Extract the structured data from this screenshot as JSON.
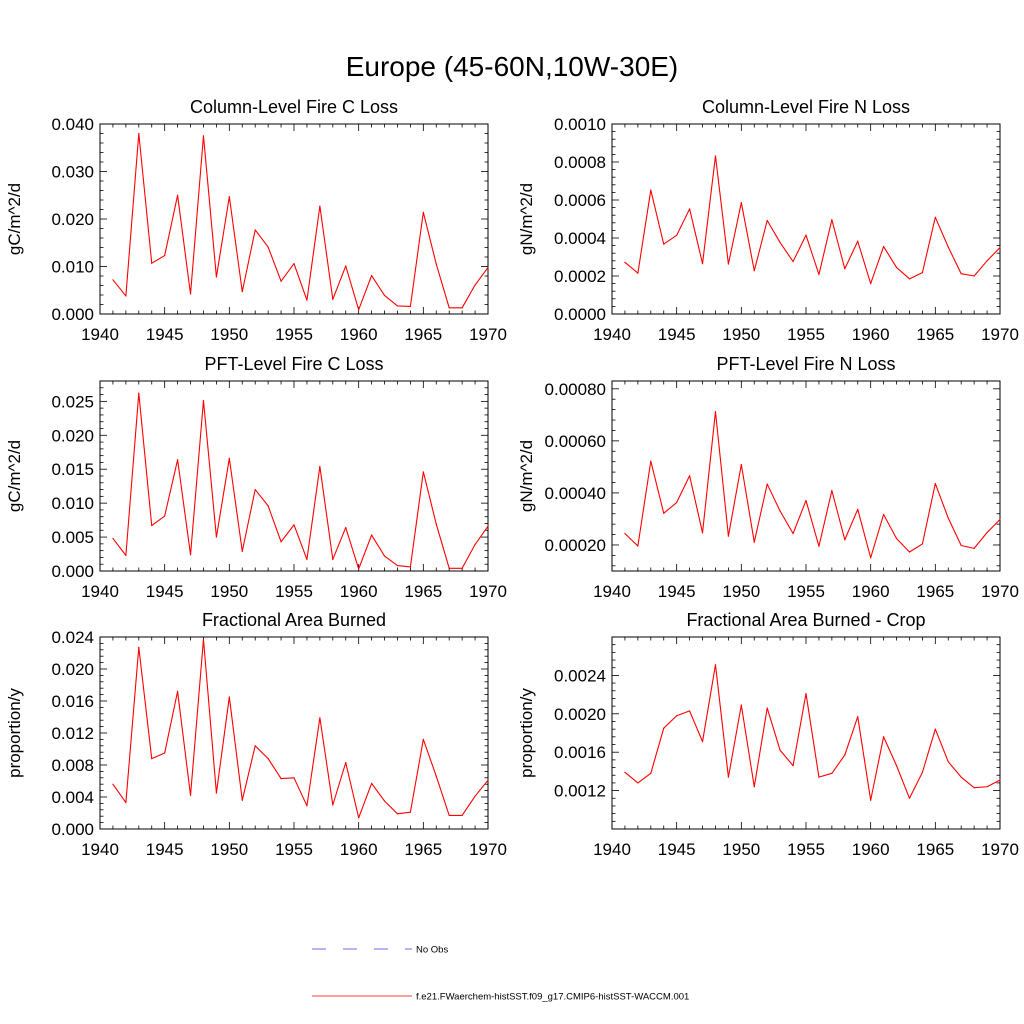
{
  "figure_title": "Europe (45-60N,10W-30E)",
  "line_color": "#ff0000",
  "obs_color": "#3b3bd6",
  "legend": {
    "obs_label": "No Obs",
    "model_label": "f.e21.FWaerchem-histSST.f09_g17.CMIP6-histSST-WACCM.001"
  },
  "chart_data": [
    {
      "type": "line",
      "title": "Column-Level Fire C Loss",
      "ylabel": "gC/m^2/d",
      "xlim": [
        1940,
        1970
      ],
      "ylim": [
        0,
        0.04
      ],
      "yticks": [
        0,
        0.01,
        0.02,
        0.03,
        0.04
      ],
      "ytick_labels": [
        "0.000",
        "0.010",
        "0.020",
        "0.030",
        "0.040"
      ],
      "xticks": [
        1940,
        1945,
        1950,
        1955,
        1960,
        1965,
        1970
      ],
      "x": [
        1941,
        1942,
        1943,
        1944,
        1945,
        1946,
        1947,
        1948,
        1949,
        1950,
        1951,
        1952,
        1953,
        1954,
        1955,
        1956,
        1957,
        1958,
        1959,
        1960,
        1961,
        1962,
        1963,
        1964,
        1965,
        1966,
        1967,
        1968,
        1969,
        1970
      ],
      "y": [
        0.0072,
        0.0038,
        0.038,
        0.0107,
        0.0123,
        0.025,
        0.0042,
        0.0375,
        0.0078,
        0.0247,
        0.0047,
        0.0177,
        0.0141,
        0.0069,
        0.0106,
        0.0029,
        0.0227,
        0.0031,
        0.0101,
        0.0009,
        0.0081,
        0.0039,
        0.0017,
        0.0016,
        0.0214,
        0.0105,
        0.0013,
        0.0013,
        0.0061,
        0.0098
      ]
    },
    {
      "type": "line",
      "title": "Column-Level Fire N Loss",
      "ylabel": "gN/m^2/d",
      "xlim": [
        1940,
        1970
      ],
      "ylim": [
        0,
        0.001
      ],
      "yticks": [
        0,
        0.0002,
        0.0004,
        0.0006,
        0.0008,
        0.001
      ],
      "ytick_labels": [
        "0.0000",
        "0.0002",
        "0.0004",
        "0.0006",
        "0.0008",
        "0.0010"
      ],
      "xticks": [
        1940,
        1945,
        1950,
        1955,
        1960,
        1965,
        1970
      ],
      "x": [
        1941,
        1942,
        1943,
        1944,
        1945,
        1946,
        1947,
        1948,
        1949,
        1950,
        1951,
        1952,
        1953,
        1954,
        1955,
        1956,
        1957,
        1958,
        1959,
        1960,
        1961,
        1962,
        1963,
        1964,
        1965,
        1966,
        1967,
        1968,
        1969,
        1970
      ],
      "y": [
        0.000272,
        0.000215,
        0.000652,
        0.000368,
        0.000414,
        0.000553,
        0.000265,
        0.000832,
        0.000263,
        0.000586,
        0.000228,
        0.000492,
        0.000376,
        0.000276,
        0.000415,
        0.000208,
        0.000496,
        0.000238,
        0.000383,
        0.00016,
        0.000355,
        0.000245,
        0.000185,
        0.000218,
        0.000509,
        0.000352,
        0.000212,
        0.0002,
        0.00028,
        0.00035
      ]
    },
    {
      "type": "line",
      "title": "PFT-Level Fire C Loss",
      "ylabel": "gC/m^2/d",
      "xlim": [
        1940,
        1970
      ],
      "ylim": [
        0,
        0.028
      ],
      "yticks": [
        0,
        0.005,
        0.01,
        0.015,
        0.02,
        0.025
      ],
      "ytick_labels": [
        "0.000",
        "0.005",
        "0.010",
        "0.015",
        "0.020",
        "0.025"
      ],
      "xticks": [
        1940,
        1945,
        1950,
        1955,
        1960,
        1965,
        1970
      ],
      "x": [
        1941,
        1942,
        1943,
        1944,
        1945,
        1946,
        1947,
        1948,
        1949,
        1950,
        1951,
        1952,
        1953,
        1954,
        1955,
        1956,
        1957,
        1958,
        1959,
        1960,
        1961,
        1962,
        1963,
        1964,
        1965,
        1966,
        1967,
        1968,
        1969,
        1970
      ],
      "y": [
        0.0048,
        0.0023,
        0.0262,
        0.0067,
        0.0081,
        0.0164,
        0.0024,
        0.0251,
        0.005,
        0.0166,
        0.0029,
        0.012,
        0.0096,
        0.0043,
        0.0068,
        0.0017,
        0.0154,
        0.0017,
        0.0064,
        0.0003,
        0.0053,
        0.0022,
        0.0008,
        0.0006,
        0.0146,
        0.0069,
        0.0004,
        0.0004,
        0.0039,
        0.0066
      ]
    },
    {
      "type": "line",
      "title": "PFT-Level Fire N Loss",
      "ylabel": "gN/m^2/d",
      "xlim": [
        1940,
        1970
      ],
      "ylim": [
        0.0001,
        0.00083
      ],
      "yticks": [
        0.0002,
        0.0004,
        0.0006,
        0.0008
      ],
      "ytick_labels": [
        "0.00020",
        "0.00040",
        "0.00060",
        "0.00080"
      ],
      "xticks": [
        1940,
        1945,
        1950,
        1955,
        1960,
        1965,
        1970
      ],
      "x": [
        1941,
        1942,
        1943,
        1944,
        1945,
        1946,
        1947,
        1948,
        1949,
        1950,
        1951,
        1952,
        1953,
        1954,
        1955,
        1956,
        1957,
        1958,
        1959,
        1960,
        1961,
        1962,
        1963,
        1964,
        1965,
        1966,
        1967,
        1968,
        1969,
        1970
      ],
      "y": [
        0.000244,
        0.000196,
        0.000522,
        0.000322,
        0.000363,
        0.000466,
        0.000247,
        0.000712,
        0.000234,
        0.000509,
        0.000211,
        0.000434,
        0.00033,
        0.000244,
        0.000371,
        0.000195,
        0.000409,
        0.00022,
        0.000337,
        0.000151,
        0.000317,
        0.000225,
        0.000173,
        0.000204,
        0.000436,
        0.000303,
        0.000198,
        0.000187,
        0.000248,
        0.000298
      ]
    },
    {
      "type": "line",
      "title": "Fractional Area Burned",
      "ylabel": "proportion/y",
      "xlim": [
        1940,
        1970
      ],
      "ylim": [
        0,
        0.024
      ],
      "yticks": [
        0,
        0.004,
        0.008,
        0.012,
        0.016,
        0.02,
        0.024
      ],
      "ytick_labels": [
        "0.000",
        "0.004",
        "0.008",
        "0.012",
        "0.016",
        "0.020",
        "0.024"
      ],
      "xticks": [
        1940,
        1945,
        1950,
        1955,
        1960,
        1965,
        1970
      ],
      "x": [
        1941,
        1942,
        1943,
        1944,
        1945,
        1946,
        1947,
        1948,
        1949,
        1950,
        1951,
        1952,
        1953,
        1954,
        1955,
        1956,
        1957,
        1958,
        1959,
        1960,
        1961,
        1962,
        1963,
        1964,
        1965,
        1966,
        1967,
        1968,
        1969,
        1970
      ],
      "y": [
        0.0056,
        0.0033,
        0.0227,
        0.0088,
        0.0095,
        0.0172,
        0.0042,
        0.0237,
        0.0045,
        0.0165,
        0.0036,
        0.0104,
        0.0088,
        0.0063,
        0.0064,
        0.0029,
        0.0139,
        0.003,
        0.0083,
        0.0014,
        0.0057,
        0.0035,
        0.0019,
        0.0021,
        0.0112,
        0.0066,
        0.0017,
        0.0017,
        0.0041,
        0.0061
      ]
    },
    {
      "type": "line",
      "title": "Fractional Area Burned - Crop",
      "ylabel": "proportion/y",
      "xlim": [
        1940,
        1970
      ],
      "ylim": [
        0.0008,
        0.0028
      ],
      "yticks": [
        0.0012,
        0.0016,
        0.002,
        0.0024
      ],
      "ytick_labels": [
        "0.0012",
        "0.0016",
        "0.0020",
        "0.0024"
      ],
      "xticks": [
        1940,
        1945,
        1950,
        1955,
        1960,
        1965,
        1970
      ],
      "x": [
        1941,
        1942,
        1943,
        1944,
        1945,
        1946,
        1947,
        1948,
        1949,
        1950,
        1951,
        1952,
        1953,
        1954,
        1955,
        1956,
        1957,
        1958,
        1959,
        1960,
        1961,
        1962,
        1963,
        1964,
        1965,
        1966,
        1967,
        1968,
        1969,
        1970
      ],
      "y": [
        0.00139,
        0.00128,
        0.00138,
        0.00185,
        0.00198,
        0.00203,
        0.00171,
        0.00251,
        0.00134,
        0.00209,
        0.00124,
        0.00206,
        0.00162,
        0.00146,
        0.00221,
        0.00134,
        0.00138,
        0.00157,
        0.00197,
        0.0011,
        0.00176,
        0.00146,
        0.00112,
        0.00139,
        0.00184,
        0.0015,
        0.00134,
        0.00123,
        0.00124,
        0.00131
      ]
    }
  ]
}
